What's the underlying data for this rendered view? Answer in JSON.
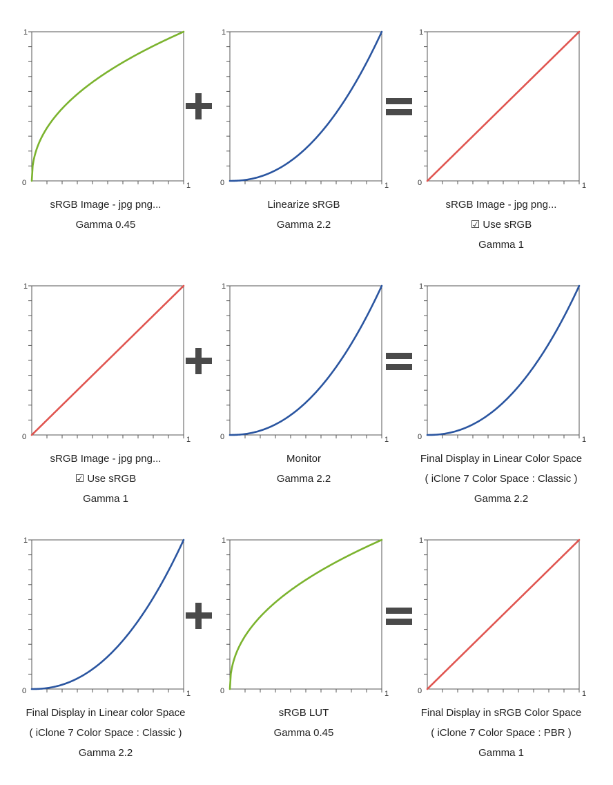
{
  "colors": {
    "green": "#7bb32e",
    "blue": "#2a55a0",
    "red": "#e05550",
    "axis": "#555555",
    "operator": "#4a4a4a"
  },
  "operators": [
    {
      "row": 0,
      "plus": "+",
      "equals": "="
    },
    {
      "row": 1,
      "plus": "+",
      "equals": "="
    },
    {
      "row": 2,
      "plus": "+",
      "equals": "="
    }
  ],
  "chart_data": [
    {
      "type": "line",
      "gamma": 0.45,
      "color": "green",
      "xlim": [
        0,
        1
      ],
      "ylim": [
        0,
        1
      ],
      "tick_labels": {
        "x0": "0",
        "x1": "1",
        "y1": "1"
      },
      "caption": [
        "sRGB Image - jpg png...",
        "Gamma 0.45"
      ]
    },
    {
      "type": "line",
      "gamma": 2.2,
      "color": "blue",
      "xlim": [
        0,
        1
      ],
      "ylim": [
        0,
        1
      ],
      "tick_labels": {
        "x0": "0",
        "x1": "1",
        "y1": "1"
      },
      "caption": [
        "Linearize sRGB",
        "Gamma 2.2"
      ]
    },
    {
      "type": "line",
      "gamma": 1,
      "color": "red",
      "xlim": [
        0,
        1
      ],
      "ylim": [
        0,
        1
      ],
      "tick_labels": {
        "x0": "0",
        "x1": "1",
        "y1": "1"
      },
      "caption": [
        "sRGB Image - jpg png...",
        "☑ Use sRGB",
        "Gamma 1"
      ]
    },
    {
      "type": "line",
      "gamma": 1,
      "color": "red",
      "xlim": [
        0,
        1
      ],
      "ylim": [
        0,
        1
      ],
      "tick_labels": {
        "x0": "0",
        "x1": "1",
        "y1": "1"
      },
      "caption": [
        "sRGB Image - jpg png...",
        "☑ Use sRGB",
        "Gamma 1"
      ]
    },
    {
      "type": "line",
      "gamma": 2.2,
      "color": "blue",
      "xlim": [
        0,
        1
      ],
      "ylim": [
        0,
        1
      ],
      "tick_labels": {
        "x0": "0",
        "x1": "1",
        "y1": "1"
      },
      "caption": [
        "Monitor",
        "Gamma 2.2"
      ]
    },
    {
      "type": "line",
      "gamma": 2.2,
      "color": "blue",
      "xlim": [
        0,
        1
      ],
      "ylim": [
        0,
        1
      ],
      "tick_labels": {
        "x0": "0",
        "x1": "1",
        "y1": "1"
      },
      "caption": [
        "Final Display in Linear Color Space",
        "( iClone 7 Color Space : Classic )",
        "Gamma 2.2"
      ]
    },
    {
      "type": "line",
      "gamma": 2.2,
      "color": "blue",
      "xlim": [
        0,
        1
      ],
      "ylim": [
        0,
        1
      ],
      "tick_labels": {
        "x0": "0",
        "x1": "1",
        "y1": "1"
      },
      "caption": [
        "Final Display in Linear color Space",
        "( iClone 7 Color Space : Classic )",
        "Gamma 2.2"
      ]
    },
    {
      "type": "line",
      "gamma": 0.45,
      "color": "green",
      "xlim": [
        0,
        1
      ],
      "ylim": [
        0,
        1
      ],
      "tick_labels": {
        "x0": "0",
        "x1": "1",
        "y1": "1"
      },
      "caption": [
        "sRGB LUT",
        "Gamma 0.45"
      ]
    },
    {
      "type": "line",
      "gamma": 1,
      "color": "red",
      "xlim": [
        0,
        1
      ],
      "ylim": [
        0,
        1
      ],
      "tick_labels": {
        "x0": "0",
        "x1": "1",
        "y1": "1"
      },
      "caption": [
        "Final Display in sRGB Color Space",
        "( iClone 7 Color Space : PBR )",
        "Gamma 1"
      ]
    }
  ]
}
